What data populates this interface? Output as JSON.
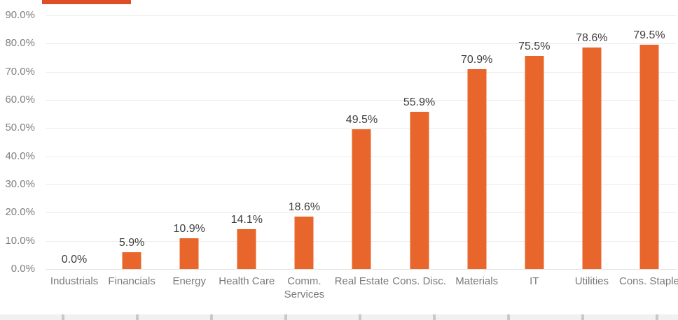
{
  "chart_data": {
    "type": "bar",
    "title": "",
    "categories": [
      "Industrials",
      "Financials",
      "Energy",
      "Health Care",
      "Comm. Services",
      "Real Estate",
      "Cons. Disc.",
      "Materials",
      "IT",
      "Utilities",
      "Cons. Staple"
    ],
    "values": [
      0.0,
      5.9,
      10.9,
      14.1,
      18.6,
      49.5,
      55.9,
      70.9,
      75.5,
      78.6,
      79.5
    ],
    "data_labels": [
      "0.0%",
      "5.9%",
      "10.9%",
      "14.1%",
      "18.6%",
      "49.5%",
      "55.9%",
      "70.9%",
      "75.5%",
      "78.6%",
      "79.5%"
    ],
    "xlabel": "",
    "ylabel": "",
    "ylim": [
      0,
      90
    ],
    "y_tick_labels": [
      "0.0%",
      "10.0%",
      "20.0%",
      "30.0%",
      "40.0%",
      "50.0%",
      "60.0%",
      "70.0%",
      "80.0%",
      "90.0%"
    ],
    "y_tick_values": [
      0,
      10,
      20,
      30,
      40,
      50,
      60,
      70,
      80,
      90
    ],
    "grid": true,
    "legend_position": "none",
    "bar_color": "#e8662b"
  },
  "colors": {
    "bar": "#e8662b",
    "top_strip": "#de4f27",
    "data_label_text": "#3f3f3f",
    "axis_label_text": "#7f7f7f",
    "gridline": "#ececec",
    "bottom_strip_bg": "#f1f1f1",
    "bottom_strip_tick": "#c9c9c9"
  }
}
